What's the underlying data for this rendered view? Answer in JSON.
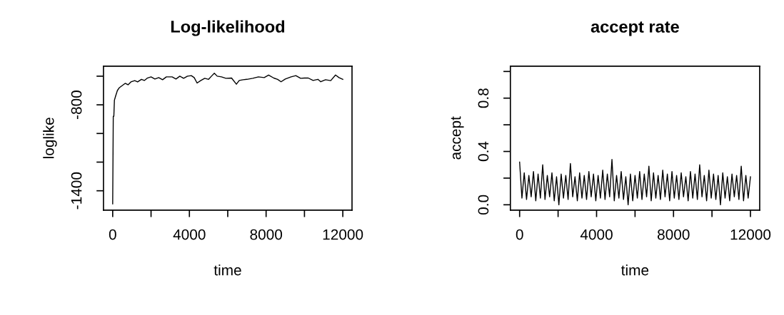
{
  "chart_data": [
    {
      "type": "line",
      "title": "Log-likelihood",
      "xlabel": "time",
      "ylabel": "loglike",
      "xlim": [
        -480,
        12480
      ],
      "ylim": [
        -1535,
        -530
      ],
      "xticks": [
        0,
        {
          "value": 2000,
          "label": null
        },
        4000,
        {
          "value": 6000,
          "label": null
        },
        8000,
        {
          "value": 10000,
          "label": null
        },
        12000
      ],
      "yticks": [
        -1400,
        {
          "value": -1200,
          "label": null
        },
        {
          "value": -1000,
          "label": null
        },
        -800,
        {
          "value": -600,
          "label": null
        }
      ],
      "grid": false,
      "legend": false,
      "series": [
        {
          "color": "#000000",
          "x": [
            0,
            30,
            60,
            90,
            150,
            245,
            350,
            500,
            650,
            800,
            950,
            1150,
            1300,
            1500,
            1650,
            1800,
            2000,
            2200,
            2400,
            2600,
            2800,
            3100,
            3300,
            3500,
            3700,
            3900,
            4100,
            4250,
            4400,
            4600,
            4800,
            5000,
            5150,
            5300,
            5450,
            5675,
            5900,
            6200,
            6450,
            6600,
            6800,
            7000,
            7300,
            7600,
            7900,
            8130,
            8400,
            8600,
            8780,
            9000,
            9300,
            9550,
            9800,
            10000,
            10200,
            10450,
            10700,
            10850,
            11100,
            11370,
            11620,
            11800,
            12000
          ],
          "values": [
            -1492,
            -880,
            -880,
            -768,
            -740,
            -700,
            -680,
            -665,
            -650,
            -660,
            -640,
            -631,
            -640,
            -622,
            -630,
            -614,
            -605,
            -620,
            -610,
            -625,
            -605,
            -605,
            -620,
            -600,
            -615,
            -600,
            -596,
            -610,
            -648,
            -630,
            -615,
            -622,
            -600,
            -579,
            -600,
            -605,
            -615,
            -613,
            -656,
            -630,
            -625,
            -622,
            -615,
            -605,
            -610,
            -592,
            -613,
            -622,
            -639,
            -620,
            -605,
            -596,
            -615,
            -613,
            -613,
            -630,
            -622,
            -639,
            -625,
            -631,
            -592,
            -610,
            -622
          ]
        }
      ]
    },
    {
      "type": "line",
      "title": "accept rate",
      "xlabel": "time",
      "ylabel": "accept",
      "xlim": [
        -480,
        12480
      ],
      "ylim": [
        -0.04,
        1.04
      ],
      "xticks": [
        0,
        {
          "value": 2000,
          "label": null
        },
        4000,
        {
          "value": 6000,
          "label": null
        },
        8000,
        {
          "value": 10000,
          "label": null
        },
        12000
      ],
      "yticks": [
        {
          "value": 0,
          "label": "0.0"
        },
        {
          "value": 0.2,
          "label": null
        },
        {
          "value": 0.4,
          "label": "0.4"
        },
        {
          "value": 0.6,
          "label": null
        },
        {
          "value": 0.8,
          "label": "0.8"
        },
        {
          "value": 1.0,
          "label": null
        }
      ],
      "grid": false,
      "legend": false,
      "series": [
        {
          "color": "#000000",
          "x": [
            0,
            120,
            240,
            360,
            480,
            600,
            720,
            840,
            960,
            1080,
            1200,
            1320,
            1440,
            1560,
            1680,
            1800,
            1920,
            2040,
            2160,
            2280,
            2400,
            2520,
            2640,
            2760,
            2880,
            3000,
            3120,
            3240,
            3360,
            3480,
            3600,
            3720,
            3840,
            3960,
            4080,
            4200,
            4320,
            4440,
            4560,
            4680,
            4800,
            4920,
            5040,
            5160,
            5280,
            5400,
            5520,
            5640,
            5760,
            5880,
            6000,
            6120,
            6240,
            6360,
            6480,
            6600,
            6720,
            6840,
            6960,
            7080,
            7200,
            7320,
            7440,
            7560,
            7680,
            7800,
            7920,
            8040,
            8160,
            8280,
            8400,
            8520,
            8640,
            8760,
            8880,
            9000,
            9120,
            9240,
            9360,
            9480,
            9600,
            9720,
            9840,
            9960,
            10080,
            10200,
            10320,
            10440,
            10560,
            10680,
            10800,
            10920,
            11040,
            11160,
            11280,
            11400,
            11520,
            11640,
            11760,
            11880,
            12000
          ],
          "values": [
            0.32,
            0.05,
            0.24,
            0.04,
            0.22,
            0.06,
            0.25,
            0.03,
            0.23,
            0.05,
            0.3,
            0.04,
            0.22,
            0.06,
            0.24,
            0.03,
            0.21,
            0.0,
            0.23,
            0.05,
            0.22,
            0.04,
            0.31,
            0.06,
            0.21,
            0.03,
            0.24,
            0.05,
            0.22,
            0.04,
            0.25,
            0.06,
            0.23,
            0.03,
            0.22,
            0.05,
            0.26,
            0.04,
            0.23,
            0.06,
            0.34,
            0.03,
            0.22,
            0.05,
            0.25,
            0.04,
            0.21,
            0.0,
            0.23,
            0.03,
            0.22,
            0.05,
            0.25,
            0.04,
            0.23,
            0.06,
            0.29,
            0.03,
            0.24,
            0.05,
            0.22,
            0.04,
            0.26,
            0.06,
            0.23,
            0.03,
            0.25,
            0.05,
            0.22,
            0.04,
            0.24,
            0.06,
            0.21,
            0.03,
            0.25,
            0.05,
            0.23,
            0.04,
            0.3,
            0.06,
            0.22,
            0.03,
            0.26,
            0.05,
            0.23,
            0.04,
            0.22,
            0.0,
            0.24,
            0.05,
            0.21,
            0.03,
            0.23,
            0.06,
            0.22,
            0.04,
            0.29,
            0.03,
            0.22,
            0.05,
            0.21
          ]
        }
      ]
    }
  ]
}
